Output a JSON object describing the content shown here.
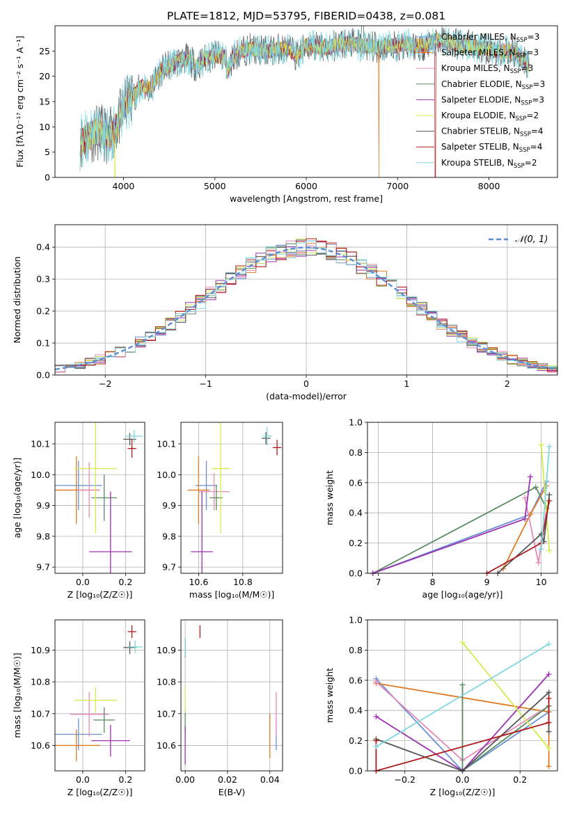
{
  "page": {
    "title": "PLATE=1812, MJD=53795, FIBERID=0438, z=0.081"
  },
  "colors": {
    "chabrier_miles": "#6a8fd8",
    "salpeter_miles": "#e07a20",
    "kroupa_miles": "#e58ab8",
    "chabrier_elodie": "#5a8a60",
    "salpeter_elodie": "#9b30b0",
    "kroupa_elodie": "#d8e850",
    "chabrier_stelib": "#555555",
    "salpeter_stelib": "#b01818",
    "kroupa_stelib": "#80d8e0"
  },
  "chart_data": [
    {
      "id": "spectrum",
      "type": "line",
      "xlabel": "wavelength [Angstrom, rest frame]",
      "ylabel": "Flux [fλ10⁻¹⁷ erg cm⁻² s⁻¹ A⁻¹]",
      "xlim": [
        3250,
        8750
      ],
      "ylim": [
        0,
        30
      ],
      "xticks": [
        4000,
        5000,
        6000,
        7000,
        8000
      ],
      "yticks": [
        0,
        5,
        10,
        15,
        20,
        25
      ],
      "legend_position": "top-right",
      "legend": [
        "Chabrier MILES, N_SSP=3",
        "Salpeter MILES, N_SSP=3",
        "Kroupa MILES, N_SSP=3",
        "Chabrier ELODIE, N_SSP=3",
        "Salpeter ELODIE, N_SSP=3",
        "Kroupa ELODIE, N_SSP=2",
        "Chabrier STELIB, N_SSP=4",
        "Salpeter STELIB, N_SSP=4",
        "Kroupa STELIB, N_SSP=2"
      ],
      "continuum": {
        "x": [
          3520,
          3600,
          3700,
          3800,
          3850,
          3900,
          3950,
          4000,
          4100,
          4200,
          4300,
          4400,
          4500,
          4600,
          4700,
          4800,
          4900,
          5000,
          5100,
          5150,
          5200,
          5300,
          5400,
          5500,
          5600,
          5700,
          5800,
          5900,
          6000,
          6100,
          6200,
          6300,
          6400,
          6500,
          6600,
          6700,
          6800,
          6900,
          7000,
          7100,
          7200,
          7300,
          7400,
          7500,
          7600,
          7700,
          7800,
          7900,
          8000,
          8100,
          8200,
          8300,
          8400,
          8450
        ],
        "y": [
          7,
          8,
          9,
          8.5,
          8,
          9.5,
          11,
          14,
          16,
          18,
          17.5,
          21,
          22,
          23,
          23.5,
          22,
          23.5,
          24,
          24,
          21,
          24,
          25,
          25.5,
          25,
          25,
          25.5,
          25.5,
          24,
          26,
          26,
          25.5,
          26,
          26.5,
          26.5,
          26,
          26,
          25.5,
          26,
          26,
          26.5,
          26,
          26,
          27,
          27,
          26.5,
          26,
          26,
          25.5,
          25.5,
          25,
          25,
          24.5,
          23,
          22
        ]
      }
    },
    {
      "id": "residuals",
      "type": "histogram",
      "xlabel": "(data-model)/error",
      "ylabel": "Normed distribution",
      "xlim": [
        -2.5,
        2.5
      ],
      "ylim": [
        0,
        0.47
      ],
      "xticks": [
        -2,
        -1,
        0,
        1,
        2
      ],
      "yticks": [
        0.0,
        0.1,
        0.2,
        0.3,
        0.4
      ],
      "bin_width": 0.1,
      "legend": "𝒩(0, 1)",
      "legend_position": "top-right"
    },
    {
      "id": "age_vs_Z",
      "type": "errorbar",
      "xlabel": "Z [log₁₀(Z/Z☉)]",
      "ylabel": "age  [log₁₀(age/yr)]",
      "xlim": [
        -0.13,
        0.29
      ],
      "ylim": [
        9.68,
        10.17
      ],
      "xticks": [
        0.0,
        0.2
      ],
      "yticks": [
        9.7,
        9.8,
        9.9,
        10.0,
        10.1
      ],
      "points": [
        {
          "k": "chabrier_miles",
          "x": -0.02,
          "xerr": 0.11,
          "y": 9.965,
          "yerr": 0.08
        },
        {
          "k": "salpeter_miles",
          "x": -0.03,
          "xerr": 0.11,
          "y": 9.95,
          "yerr": 0.11
        },
        {
          "k": "kroupa_miles",
          "x": 0.03,
          "xerr": 0.05,
          "y": 9.95,
          "yerr": 0.09
        },
        {
          "k": "chabrier_elodie",
          "x": 0.1,
          "xerr": 0.06,
          "y": 9.925,
          "yerr": 0.075
        },
        {
          "k": "salpeter_elodie",
          "x": 0.13,
          "xerr": 0.1,
          "y": 9.75,
          "yerr": 0.195
        },
        {
          "k": "kroupa_elodie",
          "x": 0.06,
          "xerr": 0.1,
          "y": 10.02,
          "yerr": 0.21
        },
        {
          "k": "chabrier_stelib",
          "x": 0.22,
          "xerr": 0.03,
          "y": 10.115,
          "yerr": 0.02
        },
        {
          "k": "salpeter_stelib",
          "x": 0.23,
          "xerr": 0.02,
          "y": 10.085,
          "yerr": 0.03
        },
        {
          "k": "kroupa_stelib",
          "x": 0.24,
          "xerr": 0.04,
          "y": 10.125,
          "yerr": 0.02
        }
      ]
    },
    {
      "id": "age_vs_mass",
      "type": "errorbar",
      "xlabel": "mass [log₁₀(M/M☉)]",
      "ylabel": "",
      "xlim": [
        10.52,
        10.98
      ],
      "ylim": [
        9.68,
        10.17
      ],
      "xticks": [
        10.6,
        10.8
      ],
      "yticks": [
        9.7,
        9.8,
        9.9,
        10.0,
        10.1
      ],
      "points": [
        {
          "k": "chabrier_miles",
          "x": 10.635,
          "xerr": 0.05,
          "y": 9.965,
          "yerr": 0.08
        },
        {
          "k": "salpeter_miles",
          "x": 10.6,
          "xerr": 0.05,
          "y": 9.95,
          "yerr": 0.11
        },
        {
          "k": "kroupa_miles",
          "x": 10.67,
          "xerr": 0.07,
          "y": 9.945,
          "yerr": 0.06
        },
        {
          "k": "chabrier_elodie",
          "x": 10.68,
          "xerr": 0.03,
          "y": 9.925,
          "yerr": 0.04
        },
        {
          "k": "salpeter_elodie",
          "x": 10.615,
          "xerr": 0.05,
          "y": 9.75,
          "yerr": 0.195
        },
        {
          "k": "kroupa_elodie",
          "x": 10.7,
          "xerr": 0.04,
          "y": 10.02,
          "yerr": 0.21
        },
        {
          "k": "chabrier_stelib",
          "x": 10.905,
          "xerr": 0.02,
          "y": 10.118,
          "yerr": 0.02
        },
        {
          "k": "salpeter_stelib",
          "x": 10.955,
          "xerr": 0.02,
          "y": 10.088,
          "yerr": 0.025
        },
        {
          "k": "kroupa_stelib",
          "x": 10.91,
          "xerr": 0.02,
          "y": 10.125,
          "yerr": 0.03
        }
      ]
    },
    {
      "id": "mass_weight_vs_age",
      "type": "line",
      "xlabel": "age  [log₁₀(age/yr)]",
      "ylabel": "mass weight",
      "xlim": [
        6.8,
        10.3
      ],
      "ylim": [
        0,
        1
      ],
      "xticks": [
        7,
        8,
        9,
        10
      ],
      "yticks": [
        0.0,
        0.2,
        0.4,
        0.6,
        0.8,
        1.0
      ],
      "series": [
        {
          "k": "chabrier_miles",
          "x": [
            6.9,
            9.8,
            10.1
          ],
          "y": [
            0,
            0.39,
            0.61
          ]
        },
        {
          "k": "salpeter_miles",
          "x": [
            9.3,
            9.8,
            10.1
          ],
          "y": [
            0.03,
            0.39,
            0.58
          ]
        },
        {
          "k": "kroupa_miles",
          "x": [
            9.7,
            9.95,
            10.1
          ],
          "y": [
            0.5,
            0.07,
            0.43
          ]
        },
        {
          "k": "chabrier_elodie",
          "x": [
            6.9,
            9.9,
            10.1
          ],
          "y": [
            0,
            0.57,
            0.43
          ]
        },
        {
          "k": "salpeter_elodie",
          "x": [
            6.9,
            9.7,
            9.8
          ],
          "y": [
            0,
            0.36,
            0.64
          ]
        },
        {
          "k": "kroupa_elodie",
          "x": [
            10.0,
            10.15
          ],
          "y": [
            0.85,
            0.15
          ]
        },
        {
          "k": "chabrier_stelib",
          "x": [
            9.2,
            10.0,
            10.05,
            10.15
          ],
          "y": [
            0,
            0.26,
            0.21,
            0.52
          ]
        },
        {
          "k": "salpeter_stelib",
          "x": [
            9.0,
            10.0,
            10.15
          ],
          "y": [
            0,
            0.2,
            0.48
          ]
        },
        {
          "k": "kroupa_stelib",
          "x": [
            10.0,
            10.15
          ],
          "y": [
            0.16,
            0.84
          ]
        }
      ]
    },
    {
      "id": "mass_vs_Z",
      "type": "errorbar",
      "xlabel": "Z [log₁₀(Z/Z☉)]",
      "ylabel": "mass [log₁₀(M/M☉)]",
      "xlim": [
        -0.13,
        0.29
      ],
      "ylim": [
        10.52,
        10.995
      ],
      "xticks": [
        0.0,
        0.2
      ],
      "yticks": [
        10.6,
        10.7,
        10.8,
        10.9
      ],
      "points": [
        {
          "k": "chabrier_miles",
          "x": -0.02,
          "xerr": 0.11,
          "y": 10.635,
          "yerr": 0.05
        },
        {
          "k": "salpeter_miles",
          "x": -0.03,
          "xerr": 0.11,
          "y": 10.6,
          "yerr": 0.05
        },
        {
          "k": "kroupa_miles",
          "x": 0.03,
          "xerr": 0.09,
          "y": 10.698,
          "yerr": 0.07
        },
        {
          "k": "chabrier_elodie",
          "x": 0.1,
          "xerr": 0.05,
          "y": 10.68,
          "yerr": 0.04
        },
        {
          "k": "salpeter_elodie",
          "x": 0.13,
          "xerr": 0.09,
          "y": 10.615,
          "yerr": 0.05
        },
        {
          "k": "kroupa_elodie",
          "x": 0.06,
          "xerr": 0.1,
          "y": 10.742,
          "yerr": 0.04
        },
        {
          "k": "chabrier_stelib",
          "x": 0.22,
          "xerr": 0.03,
          "y": 10.908,
          "yerr": 0.02
        },
        {
          "k": "salpeter_stelib",
          "x": 0.23,
          "xerr": 0.02,
          "y": 10.958,
          "yerr": 0.02
        },
        {
          "k": "kroupa_stelib",
          "x": 0.245,
          "xerr": 0.035,
          "y": 10.91,
          "yerr": 0.02
        }
      ]
    },
    {
      "id": "mass_vs_ebv",
      "type": "errorbar",
      "xlabel": "E(B-V)",
      "ylabel": "",
      "xlim": [
        -0.002,
        0.046
      ],
      "ylim": [
        10.52,
        10.995
      ],
      "xticks": [
        0.0,
        0.02,
        0.04
      ],
      "yticks": [
        10.6,
        10.7,
        10.8,
        10.9
      ],
      "points": [
        {
          "k": "chabrier_miles",
          "x": 0.043,
          "xerr": 0,
          "y": 10.635,
          "yerr": 0.05
        },
        {
          "k": "salpeter_miles",
          "x": 0.04,
          "xerr": 0,
          "y": 10.63,
          "yerr": 0.07
        },
        {
          "k": "kroupa_miles",
          "x": 0.043,
          "xerr": 0,
          "y": 10.698,
          "yerr": 0.07
        },
        {
          "k": "chabrier_elodie",
          "x": 0.0,
          "xerr": 0,
          "y": 10.68,
          "yerr": 0.04
        },
        {
          "k": "salpeter_elodie",
          "x": 0.0,
          "xerr": 0,
          "y": 10.6,
          "yerr": 0.06
        },
        {
          "k": "kroupa_elodie",
          "x": 0.0,
          "xerr": 0,
          "y": 10.742,
          "yerr": 0.04
        },
        {
          "k": "chabrier_stelib",
          "x": 0.0,
          "xerr": 0,
          "y": 10.908,
          "yerr": 0.03
        },
        {
          "k": "salpeter_stelib",
          "x": 0.007,
          "xerr": 0,
          "y": 10.958,
          "yerr": 0.02
        },
        {
          "k": "kroupa_stelib",
          "x": 0.0,
          "xerr": 0,
          "y": 10.91,
          "yerr": 0.03
        }
      ]
    },
    {
      "id": "mass_weight_vs_Z",
      "type": "line",
      "xlabel": "Z [log₁₀(Z/Z☉)]",
      "ylabel": "mass weight",
      "xlim": [
        -0.33,
        0.33
      ],
      "ylim": [
        0,
        1
      ],
      "xticks": [
        -0.2,
        0.0,
        0.2
      ],
      "yticks": [
        0.0,
        0.2,
        0.4,
        0.6,
        0.8,
        1.0
      ],
      "series": [
        {
          "k": "chabrier_miles",
          "x": [
            -0.3,
            0.0,
            0.3
          ],
          "y": [
            0.61,
            0.0,
            0.39
          ]
        },
        {
          "k": "salpeter_miles",
          "x": [
            -0.3,
            0.3,
            0.3
          ],
          "y": [
            0.58,
            0.39,
            0.03
          ]
        },
        {
          "k": "kroupa_miles",
          "x": [
            -0.3,
            0.0,
            0.3
          ],
          "y": [
            0.59,
            0.07,
            0.43
          ]
        },
        {
          "k": "chabrier_elodie",
          "x": [
            0.0,
            0.0,
            0.3
          ],
          "y": [
            0.57,
            0.0,
            0.43
          ]
        },
        {
          "k": "salpeter_elodie",
          "x": [
            -0.3,
            0.0,
            0.3
          ],
          "y": [
            0.36,
            0.0,
            0.64
          ]
        },
        {
          "k": "kroupa_elodie",
          "x": [
            0.0,
            0.3
          ],
          "y": [
            0.85,
            0.15
          ]
        },
        {
          "k": "chabrier_stelib",
          "x": [
            -0.3,
            0.0,
            0.3,
            0.3
          ],
          "y": [
            0.21,
            0.0,
            0.52,
            0.26
          ]
        },
        {
          "k": "salpeter_stelib",
          "x": [
            -0.3,
            -0.3,
            0.3,
            0.3
          ],
          "y": [
            0.2,
            0.0,
            0.32,
            0.48
          ]
        },
        {
          "k": "kroupa_stelib",
          "x": [
            -0.3,
            0.3
          ],
          "y": [
            0.16,
            0.84
          ]
        }
      ]
    }
  ]
}
